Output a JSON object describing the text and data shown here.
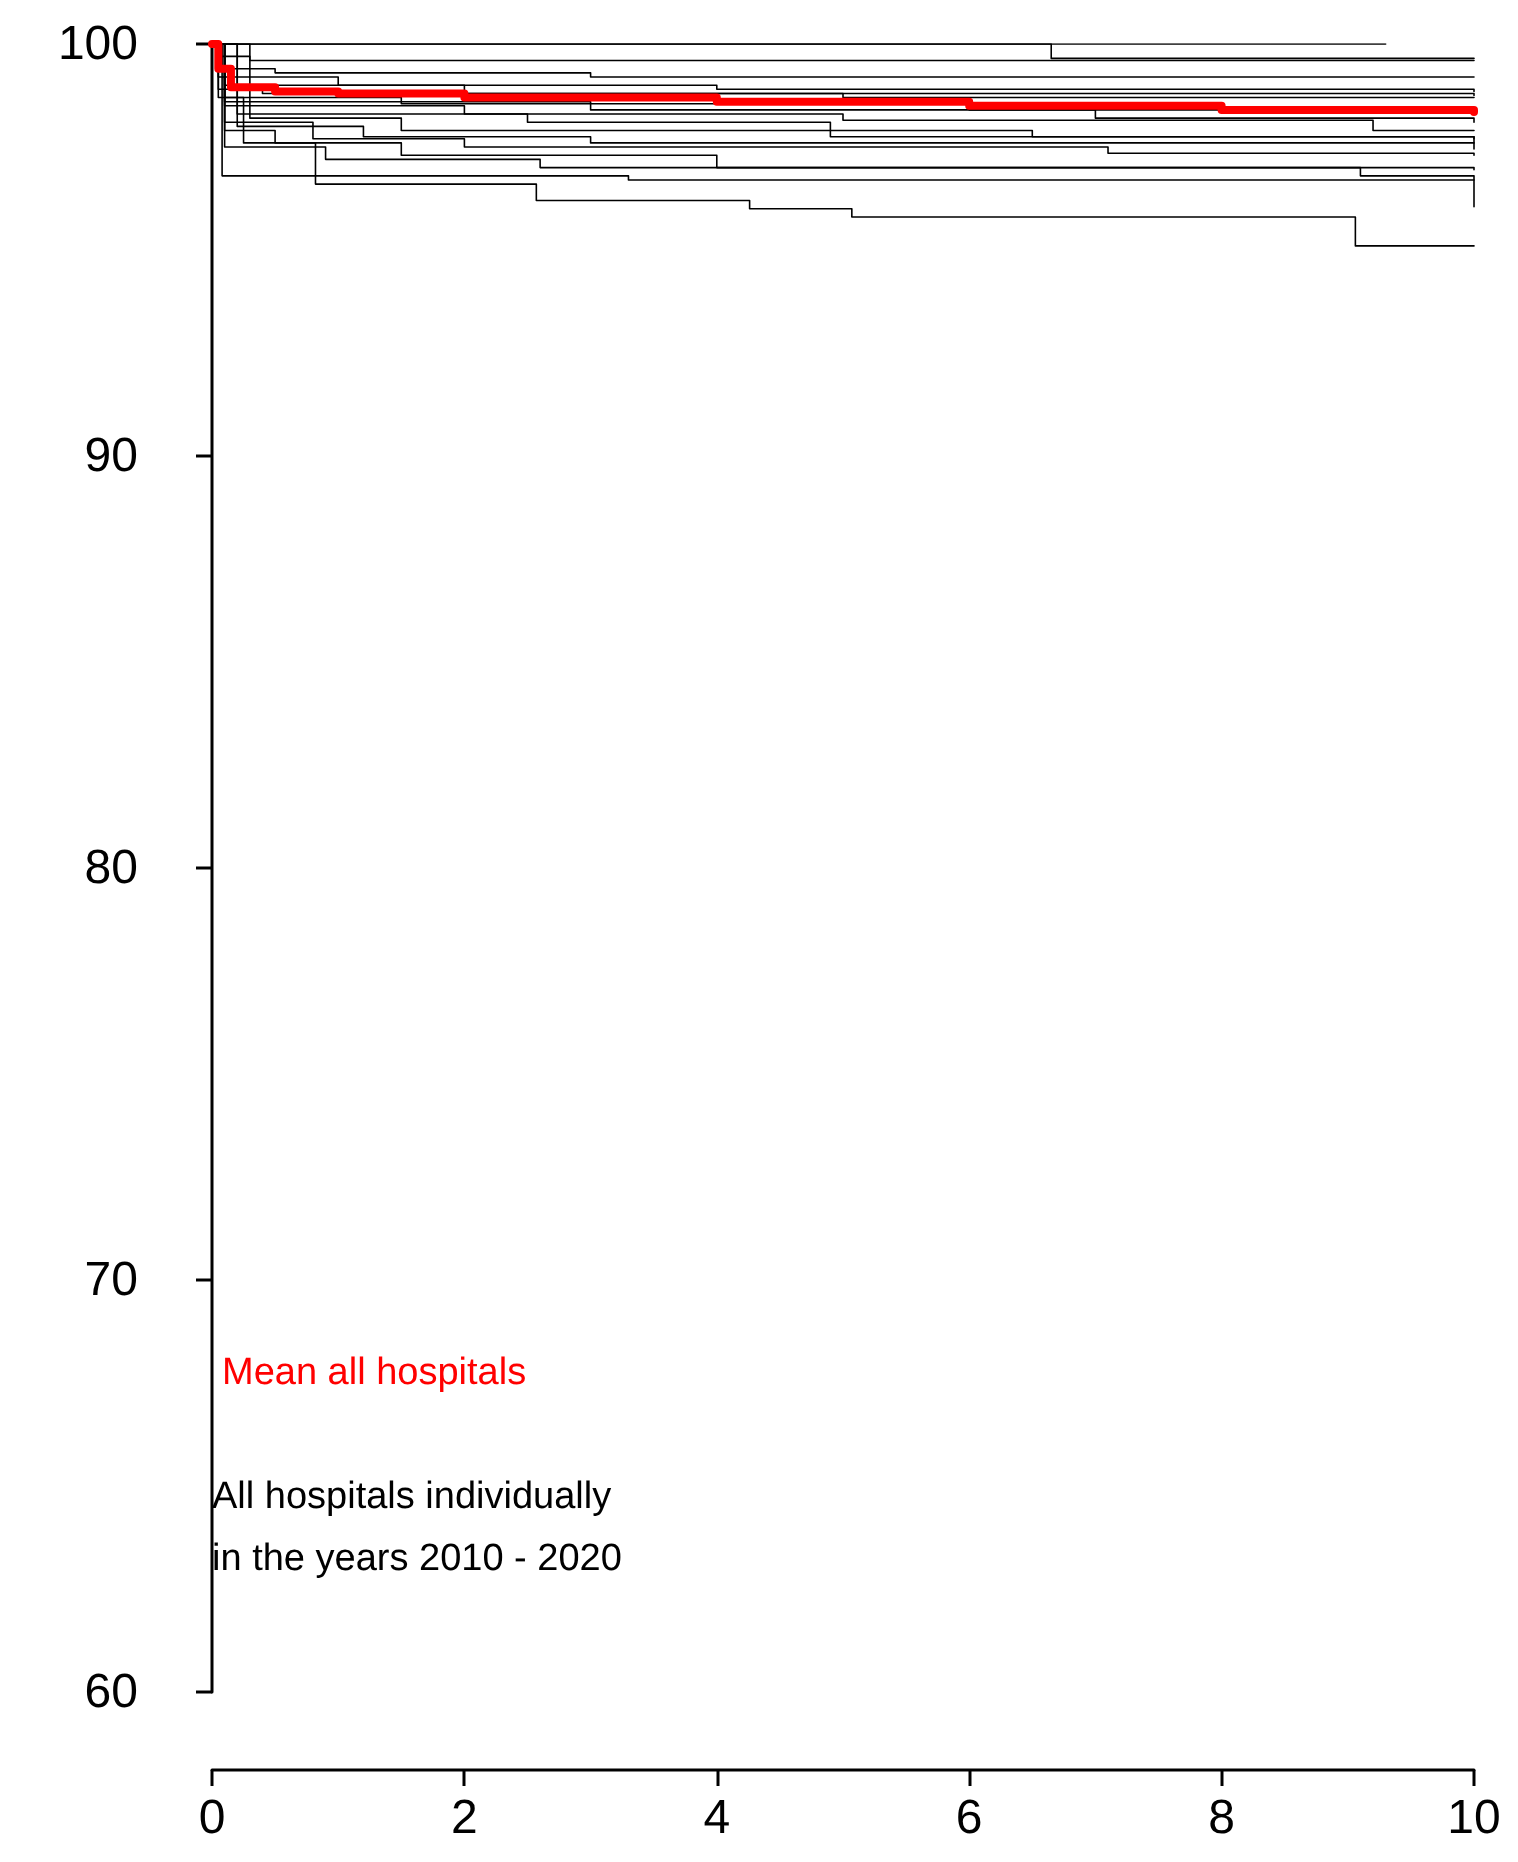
{
  "chart_data": {
    "type": "step",
    "xlim": [
      0,
      10
    ],
    "xticks": [
      0,
      2,
      4,
      6,
      8,
      10
    ],
    "ylim": [
      60,
      100
    ],
    "yticks": [
      60,
      70,
      80,
      90,
      100
    ],
    "grid": false,
    "legend": "bottom left",
    "marker": "none",
    "line_style": "solid",
    "annotations": [
      "All hospitals individually\nin the years 2010 - 2020"
    ],
    "series": [
      {
        "color": "#000000",
        "x": [
          0,
          9.3
        ],
        "values": [
          100,
          100
        ]
      },
      {
        "color": "#000000",
        "x": [
          0,
          0.1,
          6.65,
          10
        ],
        "values": [
          100,
          100,
          99.65,
          99.65
        ]
      },
      {
        "color": "#000000",
        "x": [
          0,
          0.05,
          0.3,
          10
        ],
        "values": [
          100,
          99.7,
          99.6,
          99.6
        ]
      },
      {
        "color": "#000000",
        "x": [
          0,
          0.05,
          0.5,
          3,
          10
        ],
        "values": [
          100,
          99.4,
          99.3,
          99.2,
          99.2
        ]
      },
      {
        "color": "#000000",
        "x": [
          0,
          0.05,
          1,
          4,
          10
        ],
        "values": [
          100,
          99.2,
          99.0,
          98.9,
          98.85
        ]
      },
      {
        "color": "#000000",
        "x": [
          0,
          0.1,
          2,
          10
        ],
        "values": [
          100,
          99.0,
          98.8,
          98.75
        ]
      },
      {
        "color": "#000000",
        "x": [
          0,
          0.05,
          0.4,
          5,
          10
        ],
        "values": [
          100,
          98.9,
          98.8,
          98.7,
          98.7
        ]
      },
      {
        "color": "#000000",
        "x": [
          0,
          0.1,
          1.5,
          6,
          10
        ],
        "values": [
          100,
          98.7,
          98.55,
          98.4,
          98.35
        ]
      },
      {
        "color": "#000000",
        "x": [
          0,
          0.1,
          3,
          7,
          10
        ],
        "values": [
          100,
          98.6,
          98.4,
          98.2,
          98.1
        ]
      },
      {
        "color": "#000000",
        "x": [
          0,
          0.1,
          2,
          5,
          9.2,
          10
        ],
        "values": [
          100,
          98.5,
          98.3,
          98.15,
          97.9,
          97.9
        ]
      },
      {
        "color": "#000000",
        "x": [
          0,
          0.2,
          2.5,
          4.9,
          10
        ],
        "values": [
          100,
          98.3,
          98.1,
          97.75,
          97.7
        ]
      },
      {
        "color": "#000000",
        "x": [
          0,
          0.3,
          1.5,
          6.5,
          10
        ],
        "values": [
          100,
          98.2,
          97.9,
          97.75,
          97.6
        ]
      },
      {
        "color": "#000000",
        "x": [
          0,
          0.2,
          1.2,
          3,
          10
        ],
        "values": [
          100,
          98.0,
          97.75,
          97.6,
          97.45
        ]
      },
      {
        "color": "#000000",
        "x": [
          0,
          0.1,
          0.8,
          2,
          7.1,
          10
        ],
        "values": [
          100,
          98.1,
          97.7,
          97.5,
          97.35,
          97.3
        ]
      },
      {
        "color": "#000000",
        "x": [
          0,
          0.1,
          0.5,
          1.5,
          4,
          10
        ],
        "values": [
          100,
          97.9,
          97.6,
          97.3,
          97.0,
          96.95
        ]
      },
      {
        "color": "#000000",
        "x": [
          0,
          0.1,
          0.9,
          2.6,
          9.1,
          10
        ],
        "values": [
          100,
          97.5,
          97.2,
          97.0,
          96.8,
          96.05
        ]
      },
      {
        "color": "#000000",
        "x": [
          0,
          0.08,
          3.3,
          10
        ],
        "values": [
          100,
          96.8,
          96.7,
          96.7
        ]
      },
      {
        "color": "#000000",
        "x": [
          0,
          0.05,
          0.25,
          0.82,
          2.57,
          4.26,
          5.07,
          9.06,
          10
        ],
        "values": [
          100,
          98.7,
          97.6,
          96.6,
          96.2,
          96.0,
          95.8,
          95.1,
          95.1
        ]
      },
      {
        "name": "Mean all hospitals",
        "color": "#ff0000",
        "x": [
          0,
          0.05,
          0.15,
          0.5,
          1,
          2,
          4,
          6,
          8,
          10
        ],
        "values": [
          100,
          99.4,
          98.95,
          98.85,
          98.8,
          98.7,
          98.6,
          98.5,
          98.4,
          98.35
        ]
      }
    ]
  }
}
